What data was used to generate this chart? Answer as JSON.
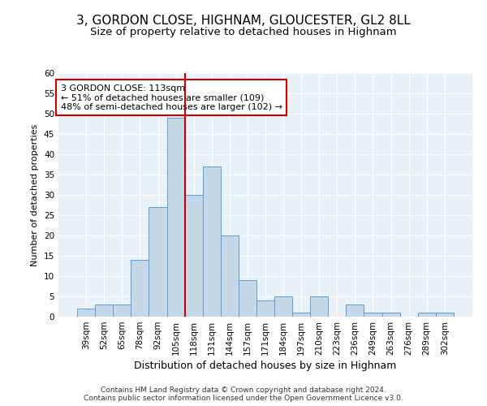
{
  "title": "3, GORDON CLOSE, HIGHNAM, GLOUCESTER, GL2 8LL",
  "subtitle": "Size of property relative to detached houses in Highnam",
  "xlabel": "Distribution of detached houses by size in Highnam",
  "ylabel": "Number of detached properties",
  "categories": [
    "39sqm",
    "52sqm",
    "65sqm",
    "78sqm",
    "92sqm",
    "105sqm",
    "118sqm",
    "131sqm",
    "144sqm",
    "157sqm",
    "171sqm",
    "184sqm",
    "197sqm",
    "210sqm",
    "223sqm",
    "236sqm",
    "249sqm",
    "263sqm",
    "276sqm",
    "289sqm",
    "302sqm"
  ],
  "values": [
    2,
    3,
    3,
    14,
    27,
    49,
    30,
    37,
    20,
    9,
    4,
    5,
    1,
    5,
    0,
    3,
    1,
    1,
    0,
    1,
    1
  ],
  "bar_color": "#c5d8e8",
  "bar_edge_color": "#5b9bd5",
  "vline_color": "#cc0000",
  "vline_x_idx": 5.5,
  "annotation_text": "3 GORDON CLOSE: 113sqm\n← 51% of detached houses are smaller (109)\n48% of semi-detached houses are larger (102) →",
  "annotation_box_color": "#ffffff",
  "annotation_box_edge": "#cc0000",
  "ylim": [
    0,
    60
  ],
  "yticks": [
    0,
    5,
    10,
    15,
    20,
    25,
    30,
    35,
    40,
    45,
    50,
    55,
    60
  ],
  "bg_color": "#e8f0f8",
  "grid_color": "#ffffff",
  "footer": "Contains HM Land Registry data © Crown copyright and database right 2024.\nContains public sector information licensed under the Open Government Licence v3.0.",
  "title_fontsize": 11,
  "subtitle_fontsize": 9.5,
  "xlabel_fontsize": 9,
  "ylabel_fontsize": 8,
  "tick_fontsize": 7.5,
  "annotation_fontsize": 8,
  "footer_fontsize": 6.5
}
